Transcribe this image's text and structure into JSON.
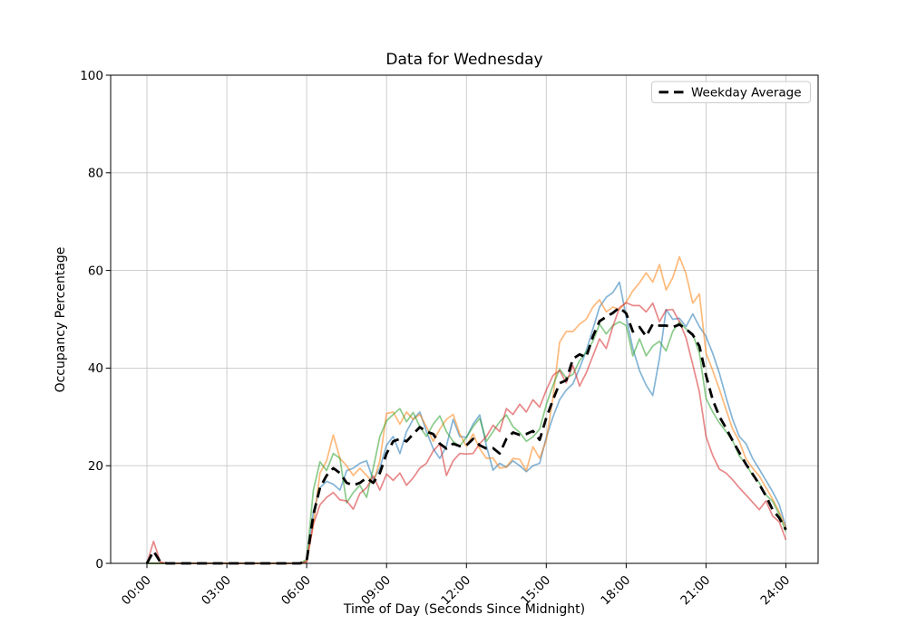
{
  "chart_data": {
    "type": "line",
    "title": "Data for Wednesday",
    "xlabel": "Time of Day (Seconds Since Midnight)",
    "ylabel": "Occupancy Percentage",
    "grid": true,
    "ylim": [
      0,
      100
    ],
    "y_ticks": [
      0,
      20,
      40,
      60,
      80,
      100
    ],
    "x_tick_hours": [
      0,
      3,
      6,
      9,
      12,
      15,
      18,
      21,
      24
    ],
    "x_tick_labels": [
      "00:00",
      "03:00",
      "06:00",
      "09:00",
      "12:00",
      "15:00",
      "18:00",
      "21:00",
      "24:00"
    ],
    "x_start_hour": 0,
    "x_step_hours": 0.25,
    "x_total_hours": 24,
    "legend": {
      "position": "upper right",
      "entries": [
        {
          "label": "Weekday Average",
          "style": "dashed",
          "color": "#000000"
        }
      ]
    },
    "series": [
      {
        "name": "day-line-blue",
        "color": "#1f77b4",
        "opacity": 0.55,
        "values": [
          0,
          0,
          0,
          0,
          0,
          0,
          0,
          0,
          0,
          0,
          0,
          0,
          0,
          0,
          0,
          0,
          0,
          0,
          0,
          0,
          0,
          0,
          0,
          0,
          0.5,
          10.5,
          15.5,
          16.8,
          16.2,
          15,
          19,
          19.5,
          20.5,
          21,
          17.1,
          19.5,
          24.2,
          26,
          22.5,
          27,
          29.5,
          31,
          27,
          23.5,
          21.5,
          24,
          29.5,
          26,
          25.8,
          28.5,
          30.4,
          24,
          19.1,
          20.5,
          19.7,
          21,
          20,
          18.8,
          20,
          20.5,
          25.8,
          30,
          33.5,
          35.5,
          36.8,
          40,
          43.5,
          48,
          52.5,
          54.5,
          55.5,
          57.6,
          50.5,
          44,
          39.5,
          36.5,
          34.4,
          42,
          52,
          50,
          50.2,
          48.5,
          51.1,
          48.5,
          46.5,
          43,
          39,
          34,
          29.5,
          26,
          24.5,
          21.5,
          19.3,
          17,
          14.7,
          12,
          7.4
        ]
      },
      {
        "name": "day-line-orange",
        "color": "#ff7f0e",
        "opacity": 0.55,
        "values": [
          0,
          0,
          0,
          0,
          0,
          0,
          0,
          0,
          0,
          0,
          0,
          0,
          0,
          0,
          0,
          0,
          0,
          0,
          0,
          0,
          0,
          0,
          0,
          0,
          0.4,
          8,
          18.5,
          21,
          26.3,
          21.5,
          20,
          18,
          19.5,
          18,
          16.5,
          21,
          30.7,
          31,
          28.5,
          31,
          29.5,
          30.5,
          28,
          25,
          27.5,
          29.5,
          30.5,
          26.5,
          24,
          26.5,
          23.5,
          21.5,
          21.6,
          19.5,
          19.7,
          21.5,
          21.3,
          19,
          23.9,
          21.5,
          25.2,
          34,
          45.3,
          47.5,
          47.5,
          49,
          50,
          52.5,
          54,
          51.5,
          52.5,
          52,
          53.5,
          55.8,
          57.5,
          59.5,
          57.6,
          61.2,
          56,
          58.5,
          62.8,
          59.3,
          53.3,
          55.2,
          43.1,
          39.5,
          35.7,
          31.5,
          27.5,
          25,
          21.4,
          19.5,
          17.9,
          15.5,
          13.2,
          10.5,
          7.2
        ]
      },
      {
        "name": "day-line-green",
        "color": "#2ca02c",
        "opacity": 0.55,
        "values": [
          0,
          0,
          0,
          0,
          0,
          0,
          0,
          0,
          0,
          0,
          0,
          0,
          0,
          0,
          0,
          0,
          0,
          0,
          0,
          0,
          0,
          0,
          0,
          0,
          0.8,
          15,
          20.8,
          19,
          22.5,
          21.5,
          12.4,
          14.5,
          16,
          13.5,
          19.5,
          26,
          29.2,
          30.5,
          31.7,
          29,
          30.9,
          28,
          26,
          28.5,
          30.2,
          27,
          25,
          24,
          25.8,
          28,
          29.7,
          25,
          27,
          29,
          30.4,
          28,
          26.8,
          25,
          25.9,
          27.5,
          32.5,
          36.5,
          39.8,
          38,
          38.7,
          41.5,
          43.3,
          45.5,
          49,
          47,
          48.7,
          49.5,
          48.7,
          42.5,
          46,
          42.5,
          44.5,
          45.5,
          43.5,
          47.5,
          49.5,
          48,
          47,
          43,
          33.8,
          31,
          28.8,
          27,
          25.1,
          22,
          20.3,
          18,
          16.5,
          14,
          12.7,
          10,
          6.5
        ]
      },
      {
        "name": "day-line-red",
        "color": "#d62728",
        "opacity": 0.55,
        "values": [
          0,
          4.5,
          0.3,
          0,
          0,
          0,
          0,
          0,
          0,
          0,
          0,
          0,
          0,
          0,
          0,
          0,
          0,
          0,
          0,
          0,
          0,
          0,
          0,
          0,
          0.3,
          8,
          12,
          13.5,
          14.5,
          13,
          12.8,
          11.1,
          14.3,
          15.5,
          17.9,
          15,
          18.3,
          17,
          18.5,
          16,
          17.5,
          19.5,
          20.5,
          23,
          24.5,
          18,
          21,
          22.5,
          22.4,
          22.5,
          24.5,
          26,
          28.3,
          27,
          31.7,
          30.5,
          32.6,
          31,
          33.5,
          32,
          35.5,
          38.5,
          39.5,
          37,
          40.5,
          36.3,
          39,
          42.5,
          46,
          44,
          48.5,
          52.4,
          53.4,
          52.8,
          52.8,
          51.5,
          53.3,
          49.5,
          51.9,
          52,
          49.5,
          46.2,
          40.7,
          35.1,
          26,
          22.1,
          19.3,
          18.5,
          17.1,
          15.5,
          14,
          12.5,
          11,
          12.8,
          9.7,
          8.5,
          4.8
        ]
      }
    ],
    "average_series": {
      "name": "Weekday Average",
      "color": "#000000",
      "style": "dashed",
      "values": [
        0,
        2.5,
        0.3,
        0,
        0,
        0,
        0,
        0,
        0,
        0,
        0,
        0,
        0,
        0,
        0,
        0,
        0,
        0,
        0,
        0,
        0,
        0,
        0,
        0,
        0.5,
        10,
        15.5,
        18,
        19.5,
        18.5,
        16.5,
        16,
        16.5,
        17.5,
        16.5,
        18.5,
        22.5,
        25,
        25.5,
        25,
        26.5,
        27.9,
        27,
        26.5,
        24.5,
        23.5,
        24.5,
        24,
        24.2,
        25.5,
        24.2,
        23.5,
        23.6,
        22.5,
        25.5,
        26.8,
        26.3,
        26.5,
        27.1,
        25.3,
        29.8,
        33.5,
        36.9,
        37.5,
        41.9,
        42.8,
        42.2,
        46.5,
        49.6,
        50.5,
        51.3,
        52.4,
        51.2,
        47.5,
        48.4,
        46.5,
        49,
        48.7,
        48.7,
        48.4,
        48.9,
        48,
        46.8,
        44.5,
        38.5,
        33.5,
        30.1,
        27.7,
        25.1,
        22.7,
        20.3,
        18.3,
        16.2,
        13.8,
        11,
        9.3,
        6.9
      ]
    },
    "colors": {
      "grid": "#c8c8c8",
      "text": "#000000",
      "background": "#ffffff"
    }
  }
}
